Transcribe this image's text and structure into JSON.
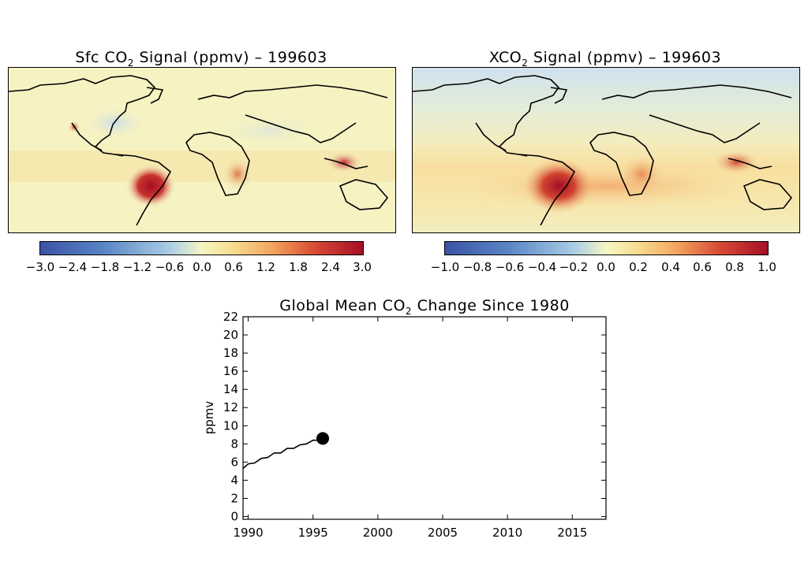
{
  "maps": [
    {
      "title_prefix": "Sfc CO",
      "title_sub": "2",
      "title_suffix": " Signal (ppmv) – 199603",
      "colorbar_ticks": [
        "−3.0",
        "−2.4",
        "−1.8",
        "−1.2",
        "−0.6",
        "0.0",
        "0.6",
        "1.2",
        "1.8",
        "2.4",
        "3.0"
      ],
      "colorbar_range": [
        -3.0,
        3.0
      ]
    },
    {
      "title_prefix": "XCO",
      "title_sub": "2",
      "title_suffix": " Signal (ppmv) – 199603",
      "colorbar_ticks": [
        "−1.0",
        "−0.8",
        "−0.6",
        "−0.4",
        "−0.2",
        "0.0",
        "0.2",
        "0.4",
        "0.6",
        "0.8",
        "1.0"
      ],
      "colorbar_range": [
        -1.0,
        1.0
      ]
    }
  ],
  "colors": {
    "scale": [
      "#3b52a6",
      "#5a86c5",
      "#a9cde6",
      "#f5f6c4",
      "#f7dc8c",
      "#f2a45e",
      "#d84b35",
      "#a50f26"
    ],
    "map_background_sfc": "#f6f2c2",
    "map_background_xco2": "#f3ecbe",
    "coastline": "#000000",
    "line": "#000000"
  },
  "chart_data": {
    "type": "line",
    "title_prefix": "Global Mean CO",
    "title_sub": "2",
    "title_suffix": " Change Since 1980",
    "xlabel": "",
    "ylabel": "ppmv",
    "xlim": [
      1989.6,
      2017.6
    ],
    "ylim": [
      -0.3,
      22
    ],
    "x_ticks": [
      1990,
      1995,
      2000,
      2005,
      2010,
      2015
    ],
    "y_ticks": [
      0,
      2,
      4,
      6,
      8,
      10,
      12,
      14,
      16,
      18,
      20,
      22
    ],
    "x_tick_labels": [
      "1990",
      "1995",
      "2000",
      "2005",
      "2010",
      "2015"
    ],
    "y_tick_labels": [
      "0",
      "2",
      "4",
      "6",
      "8",
      "10",
      "12",
      "14",
      "16",
      "18",
      "20",
      "22"
    ],
    "series": [
      {
        "x": [
          1989.6,
          1990.0,
          1990.5,
          1991.0,
          1991.5,
          1992.0,
          1992.5,
          1993.0,
          1993.5,
          1994.0,
          1994.5,
          1995.0,
          1995.5,
          1995.75
        ],
        "y": [
          5.3,
          5.8,
          5.9,
          6.4,
          6.5,
          7.0,
          7.0,
          7.5,
          7.5,
          7.9,
          8.0,
          8.4,
          8.4,
          8.6
        ]
      }
    ],
    "marker": {
      "x": 1995.75,
      "y": 8.6
    }
  }
}
